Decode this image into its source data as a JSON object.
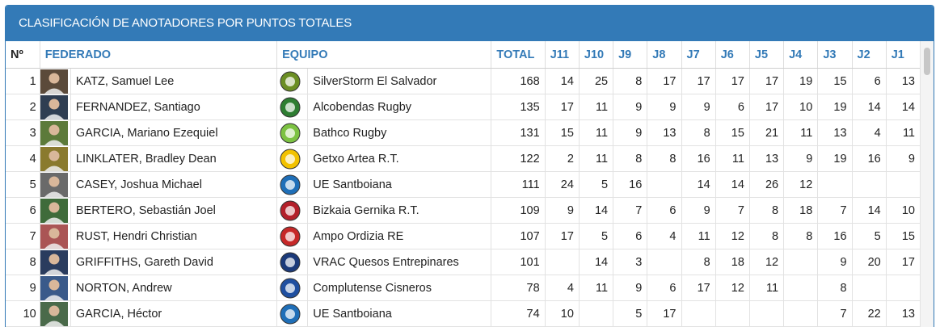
{
  "panel": {
    "title": "CLASIFICACIÓN DE ANOTADORES POR PUNTOS TOTALES"
  },
  "table": {
    "headers": {
      "num": "Nº",
      "player": "FEDERADO",
      "team": "EQUIPO",
      "total": "TOTAL",
      "rounds": [
        "J11",
        "J10",
        "J9",
        "J8",
        "J7",
        "J6",
        "J5",
        "J4",
        "J3",
        "J2",
        "J1"
      ]
    },
    "rows": [
      {
        "pos": "1",
        "name": "KATZ, Samuel Lee",
        "team": "SilverStorm El Salvador",
        "total": "168",
        "rounds": [
          "14",
          "25",
          "8",
          "17",
          "17",
          "17",
          "17",
          "19",
          "15",
          "6",
          "13"
        ],
        "avatar_color": "#5b4a3a",
        "logo_color": "#6b8e23",
        "logo_icon": "salvador-logo-icon"
      },
      {
        "pos": "2",
        "name": "FERNANDEZ, Santiago",
        "team": "Alcobendas Rugby",
        "total": "135",
        "rounds": [
          "17",
          "11",
          "9",
          "9",
          "9",
          "6",
          "17",
          "10",
          "19",
          "14",
          "14"
        ],
        "avatar_color": "#2f3e52",
        "logo_color": "#2e7d32",
        "logo_icon": "alcobendas-logo-icon"
      },
      {
        "pos": "3",
        "name": "GARCIA, Mariano Ezequiel",
        "team": "Bathco Rugby",
        "total": "131",
        "rounds": [
          "15",
          "11",
          "9",
          "13",
          "8",
          "15",
          "21",
          "11",
          "13",
          "4",
          "11"
        ],
        "avatar_color": "#5c7a3a",
        "logo_color": "#7cc242",
        "logo_icon": "bathco-logo-icon"
      },
      {
        "pos": "4",
        "name": "LINKLATER, Bradley Dean",
        "team": "Getxo Artea R.T.",
        "total": "122",
        "rounds": [
          "2",
          "11",
          "8",
          "8",
          "16",
          "11",
          "13",
          "9",
          "19",
          "16",
          "9"
        ],
        "avatar_color": "#8a7a2e",
        "logo_color": "#f2c200",
        "logo_icon": "getxo-logo-icon"
      },
      {
        "pos": "5",
        "name": "CASEY, Joshua Michael",
        "team": "UE Santboiana",
        "total": "111",
        "rounds": [
          "24",
          "5",
          "16",
          "",
          "14",
          "14",
          "26",
          "12",
          "",
          "",
          ""
        ],
        "avatar_color": "#6a6a6a",
        "logo_color": "#1f6fb8",
        "logo_icon": "santboiana-logo-icon"
      },
      {
        "pos": "6",
        "name": "BERTERO, Sebastián Joel",
        "team": "Bizkaia Gernika R.T.",
        "total": "109",
        "rounds": [
          "9",
          "14",
          "7",
          "6",
          "9",
          "7",
          "8",
          "18",
          "7",
          "14",
          "10"
        ],
        "avatar_color": "#3f6b3a",
        "logo_color": "#b3202a",
        "logo_icon": "gernika-logo-icon"
      },
      {
        "pos": "7",
        "name": "RUST, Hendri Christian",
        "team": "Ampo Ordizia RE",
        "total": "107",
        "rounds": [
          "17",
          "5",
          "6",
          "4",
          "11",
          "12",
          "8",
          "8",
          "16",
          "5",
          "15"
        ],
        "avatar_color": "#a55",
        "logo_color": "#c62828",
        "logo_icon": "ordizia-logo-icon"
      },
      {
        "pos": "8",
        "name": "GRIFFITHS, Gareth David",
        "team": "VRAC Quesos Entrepinares",
        "total": "101",
        "rounds": [
          "",
          "14",
          "3",
          "",
          "8",
          "18",
          "12",
          "",
          "9",
          "20",
          "17"
        ],
        "avatar_color": "#2a3c5e",
        "logo_color": "#1b3a7a",
        "logo_icon": "vrac-logo-icon"
      },
      {
        "pos": "9",
        "name": "NORTON, Andrew",
        "team": "Complutense Cisneros",
        "total": "78",
        "rounds": [
          "4",
          "11",
          "9",
          "6",
          "17",
          "12",
          "11",
          "",
          "8",
          "",
          ""
        ],
        "avatar_color": "#3a5a8a",
        "logo_color": "#1f4fa0",
        "logo_icon": "cisneros-logo-icon"
      },
      {
        "pos": "10",
        "name": "GARCIA, Héctor",
        "team": "UE Santboiana",
        "total": "74",
        "rounds": [
          "10",
          "",
          "5",
          "17",
          "",
          "",
          "",
          "",
          "7",
          "22",
          "13"
        ],
        "avatar_color": "#4a6a4a",
        "logo_color": "#1f6fb8",
        "logo_icon": "santboiana-logo-icon"
      }
    ]
  }
}
